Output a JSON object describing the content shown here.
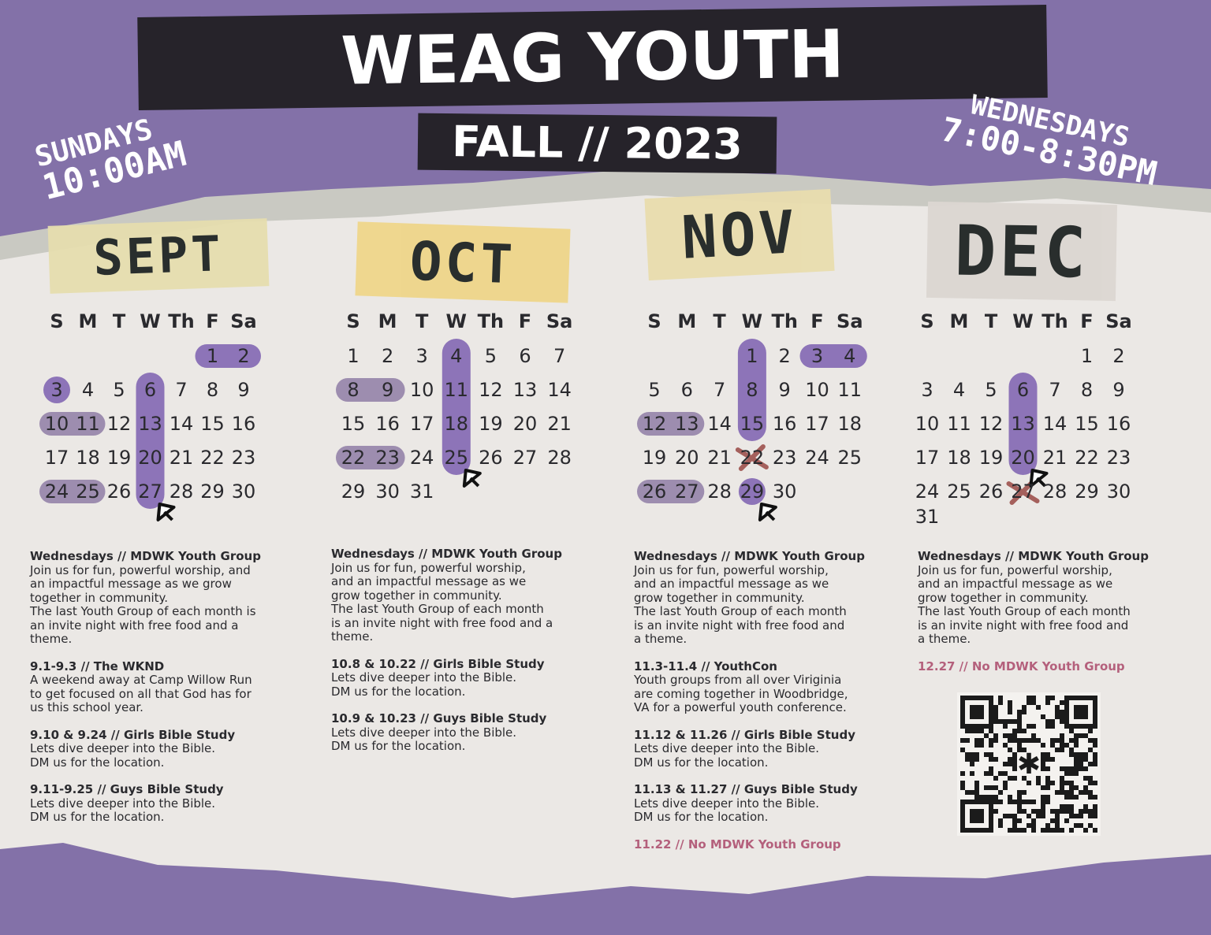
{
  "header": {
    "title": "WEAG YOUTH",
    "subtitle": "FALL // 2023",
    "sundays": [
      "SUNDAYS",
      "10:00AM"
    ],
    "wednesdays": [
      "WEDNESDAYS",
      "7:00-8:30PM"
    ]
  },
  "weekdays": [
    "S",
    "M",
    "T",
    "W",
    "Th",
    "F",
    "Sa"
  ],
  "months": [
    {
      "name": "SEPT",
      "weeks": [
        [
          null,
          null,
          null,
          null,
          null,
          1,
          2
        ],
        [
          3,
          4,
          5,
          6,
          7,
          8,
          9
        ],
        [
          10,
          11,
          12,
          13,
          14,
          15,
          16
        ],
        [
          17,
          18,
          19,
          20,
          21,
          22,
          23
        ],
        [
          24,
          25,
          26,
          27,
          28,
          29,
          30
        ]
      ],
      "events": [
        {
          "heading": "Wednesdays // MDWK Youth Group",
          "lines": [
            "Join us for fun, powerful  worship, and",
            "an impactful message as we grow",
            "together in community.",
            "The last Youth Group of each month is",
            "an invite night with free food and a",
            "theme."
          ]
        },
        {
          "heading": "9.1-9.3 // The WKND",
          "lines": [
            "A weekend away at Camp Willow Run",
            "to get focused on all that God has for",
            "us this school year."
          ]
        },
        {
          "heading": "9.10 & 9.24 // Girls Bible Study",
          "lines": [
            "Lets dive deeper into the Bible.",
            "DM us for the location."
          ]
        },
        {
          "heading": "9.11-9.25 // Guys Bible Study",
          "lines": [
            "Lets dive deeper into the Bible.",
            "DM us for the location."
          ]
        }
      ]
    },
    {
      "name": "OCT",
      "weeks": [
        [
          1,
          2,
          3,
          4,
          5,
          6,
          7
        ],
        [
          8,
          9,
          10,
          11,
          12,
          13,
          14
        ],
        [
          15,
          16,
          17,
          18,
          19,
          20,
          21
        ],
        [
          22,
          23,
          24,
          25,
          26,
          27,
          28
        ],
        [
          29,
          30,
          31,
          null,
          null,
          null,
          null
        ]
      ],
      "events": [
        {
          "heading": "Wednesdays // MDWK Youth Group",
          "lines": [
            "Join us for fun, powerful  worship,",
            "and an impactful message as we",
            "grow together in community.",
            "The last Youth Group of each month",
            "is an invite night with free food and a",
            "theme."
          ]
        },
        {
          "heading": "10.8 & 10.22 // Girls Bible Study",
          "lines": [
            "Lets dive deeper into the Bible.",
            "DM us for the location."
          ]
        },
        {
          "heading": "10.9 & 10.23 // Guys Bible Study",
          "lines": [
            "Lets dive deeper into the Bible.",
            "DM us for the location."
          ]
        }
      ]
    },
    {
      "name": "NOV",
      "weeks": [
        [
          null,
          null,
          null,
          1,
          2,
          3,
          4
        ],
        [
          5,
          6,
          7,
          8,
          9,
          10,
          11
        ],
        [
          12,
          13,
          14,
          15,
          16,
          17,
          18
        ],
        [
          19,
          20,
          21,
          22,
          23,
          24,
          25
        ],
        [
          26,
          27,
          28,
          29,
          30,
          null,
          null
        ]
      ],
      "events": [
        {
          "heading": "Wednesdays // MDWK Youth Group",
          "lines": [
            "Join us for fun, powerful  worship,",
            "and an impactful message as we",
            "grow together in community.",
            "The last Youth Group of each month",
            "is an invite night with free food and",
            "a theme."
          ]
        },
        {
          "heading": "11.3-11.4 // YouthCon",
          "lines": [
            "Youth groups from all over Viriginia",
            "are coming together in Woodbridge,",
            "VA for a powerful youth conference."
          ]
        },
        {
          "heading": "11.12 & 11.26 // Girls Bible Study",
          "lines": [
            "Lets dive deeper into the Bible.",
            "DM us for the location."
          ]
        },
        {
          "heading": "11.13 & 11.27 // Guys Bible Study",
          "lines": [
            "Lets dive deeper into the Bible.",
            "DM us for the location."
          ]
        },
        {
          "heading": "11.22 // No MDWK Youth Group",
          "lines": [],
          "alert": true
        }
      ]
    },
    {
      "name": "DEC",
      "weeks": [
        [
          null,
          null,
          null,
          null,
          null,
          1,
          2
        ],
        [
          3,
          4,
          5,
          6,
          7,
          8,
          9
        ],
        [
          10,
          11,
          12,
          13,
          14,
          15,
          16
        ],
        [
          17,
          18,
          19,
          20,
          21,
          22,
          23
        ],
        [
          24,
          25,
          26,
          27,
          28,
          29,
          30
        ],
        [
          31,
          null,
          null,
          null,
          null,
          null,
          null
        ]
      ],
      "events": [
        {
          "heading": "Wednesdays // MDWK Youth Group",
          "lines": [
            "Join us for fun, powerful  worship,",
            "and an impactful message as we",
            "grow together in community.",
            "The last Youth Group of each month",
            "is an invite night with free food and",
            "a theme."
          ]
        },
        {
          "heading": "12.27 // No MDWK Youth Group",
          "lines": [],
          "alert": true
        }
      ]
    }
  ]
}
